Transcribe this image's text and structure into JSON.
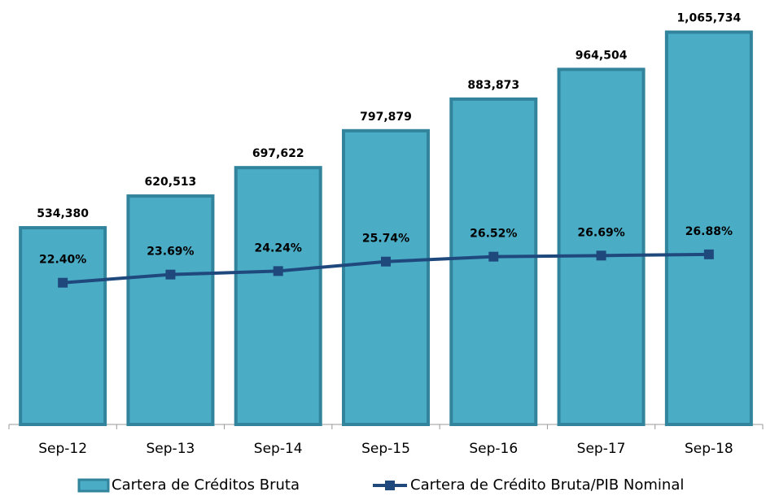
{
  "chart_data": {
    "type": "combo",
    "categories": [
      "Sep-12",
      "Sep-13",
      "Sep-14",
      "Sep-15",
      "Sep-16",
      "Sep-17",
      "Sep-18"
    ],
    "series": [
      {
        "name": "Cartera de Créditos Bruta",
        "type": "bar",
        "color": "#4bacc6",
        "edge": "#31849b",
        "values": [
          534380,
          620513,
          697622,
          797879,
          883873,
          964504,
          1065734
        ],
        "value_labels": [
          "534,380",
          "620,513",
          "697,622",
          "797,879",
          "883,873",
          "964,504",
          "1,065,734"
        ]
      },
      {
        "name": "Cartera de Crédito Bruta/PIB Nominal",
        "type": "line",
        "axis": "y2",
        "color": "#1f497d",
        "values": [
          22.4,
          23.69,
          24.24,
          25.74,
          26.52,
          26.69,
          26.88
        ],
        "value_labels": [
          "22.40%",
          "23.69%",
          "24.24%",
          "25.74%",
          "26.52%",
          "26.69%",
          "26.88%"
        ]
      }
    ],
    "ylim": [
      0,
      1100000
    ],
    "y2lim": [
      0,
      64
    ],
    "legend": "bottom"
  }
}
